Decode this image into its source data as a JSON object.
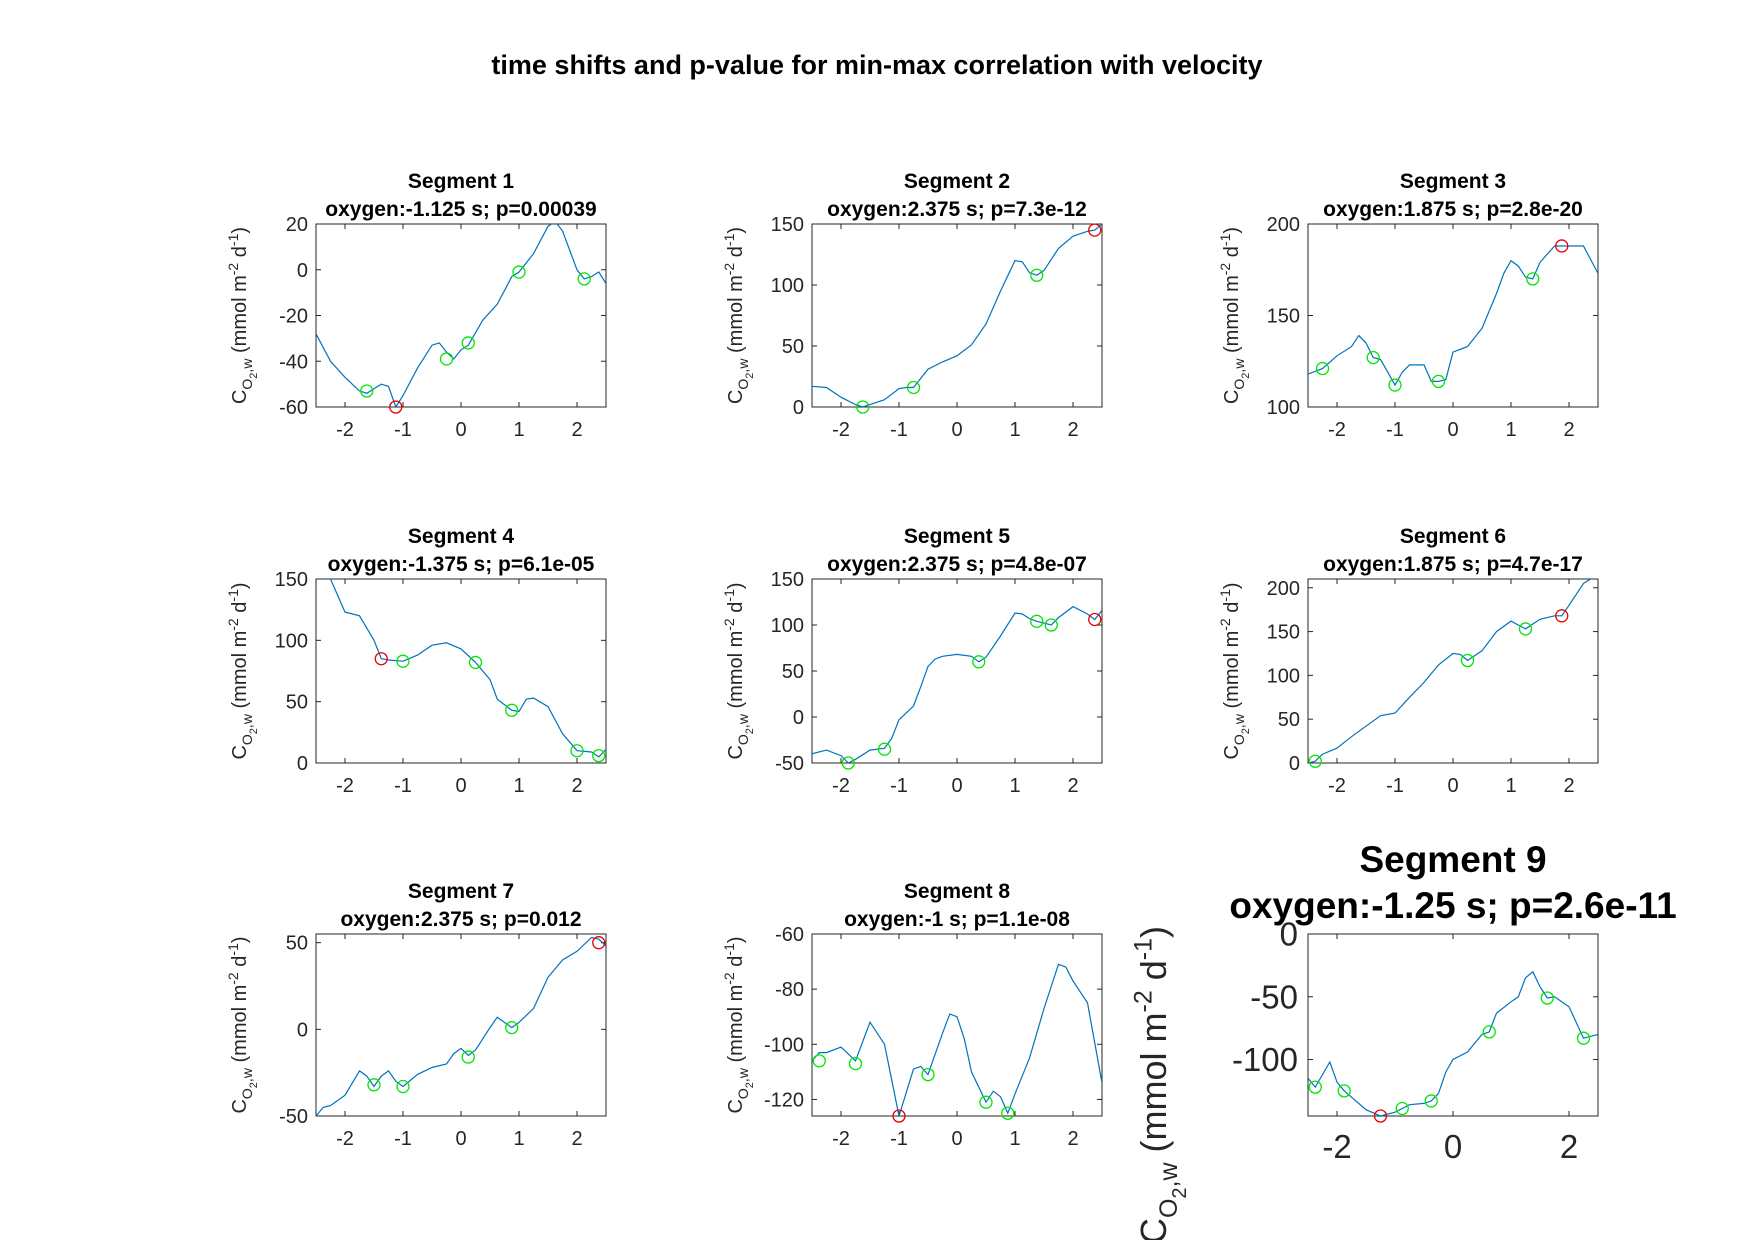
{
  "figure_title": "time shifts and p-value for min-max correlation with velocity",
  "colors": {
    "line": "#0072BD",
    "highlight": "#00E600",
    "selected": "#E60000",
    "axis": "#262626"
  },
  "chart_data": [
    {
      "type": "line",
      "title": "Segment 1",
      "subtitle": "oxygen:-1.125 s; p=0.00039",
      "ylabel": "C_{O_2,w} (mmol m^{-2} d^{-1})",
      "xlim": [
        -2.5,
        2.5
      ],
      "ylim": [
        -60,
        20
      ],
      "xticks": [
        -2,
        -1,
        0,
        1,
        2
      ],
      "yticks": [
        -60,
        -40,
        -20,
        0,
        20
      ],
      "series": [
        {
          "x": [
            -2.5,
            -2.25,
            -2.0,
            -1.75,
            -1.625,
            -1.5,
            -1.375,
            -1.25,
            -1.125,
            -1.0,
            -0.75,
            -0.5,
            -0.375,
            -0.25,
            -0.125,
            0.0,
            0.125,
            0.375,
            0.625,
            0.875,
            1.0,
            1.25,
            1.5,
            1.625,
            1.75,
            2.0,
            2.125,
            2.25,
            2.375,
            2.5
          ],
          "y": [
            -28,
            -40,
            -47,
            -53,
            -54,
            -52,
            -50,
            -51,
            -60,
            -55,
            -43,
            -33,
            -32,
            -36,
            -39,
            -35,
            -33,
            -22,
            -15,
            -3,
            -1,
            7,
            19,
            21,
            17,
            0,
            -4,
            -3,
            -1,
            -6
          ]
        }
      ],
      "markers_green": [
        [
          -1.625,
          -53
        ],
        [
          -0.25,
          -39
        ],
        [
          0.125,
          -32
        ],
        [
          1.0,
          -1
        ],
        [
          2.125,
          -4
        ]
      ],
      "marker_red": [
        -1.125,
        -60
      ]
    },
    {
      "type": "line",
      "title": "Segment 2",
      "subtitle": "oxygen:2.375 s; p=7.3e-12",
      "ylabel": "C_{O_2,w} (mmol m^{-2} d^{-1})",
      "xlim": [
        -2.5,
        2.5
      ],
      "ylim": [
        0,
        150
      ],
      "xticks": [
        -2,
        -1,
        0,
        1,
        2
      ],
      "yticks": [
        0,
        50,
        100,
        150
      ],
      "series": [
        {
          "x": [
            -2.5,
            -2.25,
            -2.0,
            -1.75,
            -1.625,
            -1.5,
            -1.25,
            -1.0,
            -0.875,
            -0.75,
            -0.5,
            -0.25,
            0.0,
            0.25,
            0.5,
            0.75,
            1.0,
            1.125,
            1.25,
            1.375,
            1.5,
            1.75,
            2.0,
            2.25,
            2.375,
            2.5
          ],
          "y": [
            17,
            16,
            8,
            2,
            0,
            2,
            6,
            15,
            16,
            16,
            31,
            37,
            42,
            51,
            68,
            95,
            120,
            119,
            110,
            108,
            112,
            130,
            140,
            144,
            145,
            150
          ]
        }
      ],
      "markers_green": [
        [
          -1.625,
          0
        ],
        [
          -0.75,
          16
        ],
        [
          1.375,
          108
        ]
      ],
      "marker_red": [
        2.375,
        145
      ]
    },
    {
      "type": "line",
      "title": "Segment 3",
      "subtitle": "oxygen:1.875 s; p=2.8e-20",
      "ylabel": "C_{O_2,w} (mmol m^{-2} d^{-1})",
      "xlim": [
        -2.5,
        2.5
      ],
      "ylim": [
        100,
        200
      ],
      "xticks": [
        -2,
        -1,
        0,
        1,
        2
      ],
      "yticks": [
        100,
        150,
        200
      ],
      "series": [
        {
          "x": [
            -2.5,
            -2.25,
            -2.0,
            -1.75,
            -1.625,
            -1.5,
            -1.375,
            -1.25,
            -1.0,
            -0.875,
            -0.75,
            -0.5,
            -0.375,
            -0.25,
            -0.125,
            0.0,
            0.25,
            0.5,
            0.75,
            0.875,
            1.0,
            1.125,
            1.25,
            1.375,
            1.5,
            1.75,
            1.875,
            2.0,
            2.25,
            2.5
          ],
          "y": [
            118,
            121,
            128,
            133,
            139,
            135,
            127,
            126,
            112,
            119,
            123,
            123,
            114,
            114,
            115,
            130,
            133,
            143,
            162,
            173,
            180,
            177,
            171,
            170,
            179,
            188,
            188,
            188,
            188,
            173
          ]
        }
      ],
      "markers_green": [
        [
          -2.25,
          121
        ],
        [
          -1.375,
          127
        ],
        [
          -1.0,
          112
        ],
        [
          -0.25,
          114
        ],
        [
          1.375,
          170
        ]
      ],
      "marker_red": [
        1.875,
        188
      ]
    },
    {
      "type": "line",
      "title": "Segment 4",
      "subtitle": "oxygen:-1.375 s; p=6.1e-05",
      "ylabel": "C_{O_2,w} (mmol m^{-2} d^{-1})",
      "xlim": [
        -2.5,
        2.5
      ],
      "ylim": [
        0,
        150
      ],
      "xticks": [
        -2,
        -1,
        0,
        1,
        2
      ],
      "yticks": [
        0,
        50,
        100,
        150
      ],
      "series": [
        {
          "x": [
            -2.5,
            -2.25,
            -2.0,
            -1.75,
            -1.5,
            -1.375,
            -1.25,
            -1.0,
            -0.75,
            -0.5,
            -0.25,
            0.0,
            0.25,
            0.5,
            0.625,
            0.875,
            1.0,
            1.125,
            1.25,
            1.5,
            1.75,
            2.0,
            2.25,
            2.375,
            2.5
          ],
          "y": [
            155,
            150,
            123,
            120,
            100,
            85,
            84,
            83,
            88,
            96,
            98,
            93,
            82,
            68,
            52,
            43,
            42,
            52,
            53,
            46,
            24,
            10,
            9,
            5,
            11
          ]
        }
      ],
      "markers_green": [
        [
          -1.0,
          83
        ],
        [
          0.25,
          82
        ],
        [
          0.875,
          43
        ],
        [
          2.0,
          10
        ],
        [
          2.375,
          6
        ]
      ],
      "marker_red": [
        -1.375,
        85
      ]
    },
    {
      "type": "line",
      "title": "Segment 5",
      "subtitle": "oxygen:2.375 s; p=4.8e-07",
      "ylabel": "C_{O_2,w} (mmol m^{-2} d^{-1})",
      "xlim": [
        -2.5,
        2.5
      ],
      "ylim": [
        -50,
        150
      ],
      "xticks": [
        -2,
        -1,
        0,
        1,
        2
      ],
      "yticks": [
        -50,
        0,
        50,
        100,
        150
      ],
      "series": [
        {
          "x": [
            -2.5,
            -2.25,
            -2.0,
            -1.875,
            -1.75,
            -1.5,
            -1.25,
            -1.125,
            -1.0,
            -0.75,
            -0.625,
            -0.5,
            -0.375,
            -0.25,
            0.0,
            0.25,
            0.375,
            0.5,
            0.75,
            1.0,
            1.125,
            1.25,
            1.375,
            1.625,
            1.75,
            2.0,
            2.25,
            2.375,
            2.5
          ],
          "y": [
            -40,
            -36,
            -42,
            -50,
            -46,
            -36,
            -34,
            -23,
            -3,
            12,
            33,
            55,
            63,
            66,
            68,
            66,
            60,
            65,
            88,
            113,
            112,
            107,
            104,
            100,
            108,
            120,
            112,
            106,
            116
          ]
        }
      ],
      "markers_green": [
        [
          -1.875,
          -50
        ],
        [
          -1.25,
          -35
        ],
        [
          0.375,
          60
        ],
        [
          1.375,
          104
        ],
        [
          1.625,
          100
        ]
      ],
      "marker_red": [
        2.375,
        106
      ]
    },
    {
      "type": "line",
      "title": "Segment 6",
      "subtitle": "oxygen:1.875 s; p=4.7e-17",
      "ylabel": "C_{O_2,w} (mmol m^{-2} d^{-1})",
      "xlim": [
        -2.5,
        2.5
      ],
      "ylim": [
        0,
        210
      ],
      "xticks": [
        -2,
        -1,
        0,
        1,
        2
      ],
      "yticks": [
        0,
        50,
        100,
        150,
        200
      ],
      "series": [
        {
          "x": [
            -2.5,
            -2.375,
            -2.25,
            -2.0,
            -1.75,
            -1.5,
            -1.25,
            -1.0,
            -0.75,
            -0.5,
            -0.25,
            0.0,
            0.125,
            0.25,
            0.5,
            0.75,
            1.0,
            1.25,
            1.5,
            1.75,
            1.875,
            2.0,
            2.25,
            2.5
          ],
          "y": [
            0,
            2,
            10,
            17,
            30,
            42,
            54,
            57,
            75,
            92,
            112,
            125,
            124,
            117,
            128,
            150,
            162,
            153,
            164,
            168,
            168,
            180,
            205,
            215
          ]
        }
      ],
      "markers_green": [
        [
          -2.375,
          2
        ],
        [
          0.25,
          117
        ],
        [
          1.25,
          153
        ]
      ],
      "marker_red": [
        1.875,
        168
      ]
    },
    {
      "type": "line",
      "title": "Segment 7",
      "subtitle": "oxygen:2.375 s; p=0.012",
      "ylabel": "C_{O_2,w} (mmol m^{-2} d^{-1})",
      "xlim": [
        -2.5,
        2.5
      ],
      "ylim": [
        -50,
        55
      ],
      "xticks": [
        -2,
        -1,
        0,
        1,
        2
      ],
      "yticks": [
        -50,
        0,
        50
      ],
      "series": [
        {
          "x": [
            -2.5,
            -2.375,
            -2.25,
            -2.0,
            -1.75,
            -1.625,
            -1.5,
            -1.375,
            -1.25,
            -1.125,
            -1.0,
            -0.75,
            -0.5,
            -0.25,
            -0.125,
            0.0,
            0.125,
            0.25,
            0.5,
            0.625,
            0.875,
            1.0,
            1.25,
            1.5,
            1.75,
            2.0,
            2.25,
            2.375,
            2.5
          ],
          "y": [
            -50,
            -45,
            -44,
            -38,
            -24,
            -27,
            -33,
            -27,
            -24,
            -30,
            -33,
            -26,
            -22,
            -20,
            -14,
            -11,
            -15,
            -12,
            1,
            7,
            1,
            4,
            12,
            30,
            40,
            45,
            53,
            52,
            48
          ]
        }
      ],
      "markers_green": [
        [
          -1.5,
          -32
        ],
        [
          -1.0,
          -33
        ],
        [
          0.125,
          -16
        ],
        [
          0.875,
          1
        ]
      ],
      "marker_red": [
        2.375,
        50
      ]
    },
    {
      "type": "line",
      "title": "Segment 8",
      "subtitle": "oxygen:-1 s; p=1.1e-08",
      "ylabel": "C_{O_2,w} (mmol m^{-2} d^{-1})",
      "xlim": [
        -2.5,
        2.5
      ],
      "ylim": [
        -126,
        -60
      ],
      "xticks": [
        -2,
        -1,
        0,
        1,
        2
      ],
      "yticks": [
        -120,
        -100,
        -80,
        -60
      ],
      "series": [
        {
          "x": [
            -2.5,
            -2.375,
            -2.25,
            -2.0,
            -1.75,
            -1.5,
            -1.25,
            -1.0,
            -0.75,
            -0.625,
            -0.5,
            -0.25,
            -0.125,
            0.0,
            0.125,
            0.25,
            0.5,
            0.625,
            0.75,
            0.875,
            1.0,
            1.25,
            1.5,
            1.75,
            1.875,
            2.0,
            2.25,
            2.5
          ],
          "y": [
            -106,
            -103,
            -103,
            -101,
            -106,
            -92,
            -100,
            -126,
            -109,
            -108,
            -111,
            -96,
            -89,
            -90,
            -98,
            -110,
            -121,
            -117,
            -119,
            -125,
            -118,
            -105,
            -87,
            -71,
            -72,
            -77,
            -85,
            -114
          ]
        }
      ],
      "markers_green": [
        [
          -2.375,
          -106
        ],
        [
          -1.75,
          -107
        ],
        [
          -0.5,
          -111
        ],
        [
          0.5,
          -121
        ],
        [
          0.875,
          -125
        ]
      ],
      "marker_red": [
        -1.0,
        -126
      ]
    },
    {
      "type": "line",
      "title": "Segment 9",
      "subtitle": "oxygen:-1.25 s; p=2.6e-11",
      "ylabel": "C_{O_2,w} (mmol m^{-2} d^{-1})",
      "xlim": [
        -2.5,
        2.5
      ],
      "ylim": [
        -145,
        0
      ],
      "xticks": [
        -2,
        0,
        2
      ],
      "yticks": [
        -100,
        -50,
        0
      ],
      "series": [
        {
          "x": [
            -2.5,
            -2.375,
            -2.125,
            -2.0,
            -1.875,
            -1.75,
            -1.5,
            -1.25,
            -1.0,
            -0.875,
            -0.75,
            -0.5,
            -0.375,
            -0.25,
            -0.125,
            0.0,
            0.25,
            0.5,
            0.625,
            0.75,
            1.0,
            1.125,
            1.25,
            1.375,
            1.5,
            1.625,
            1.75,
            2.0,
            2.25,
            2.5
          ],
          "y": [
            -115,
            -122,
            -102,
            -118,
            -125,
            -130,
            -140,
            -145,
            -142,
            -139,
            -136,
            -135,
            -133,
            -127,
            -110,
            -100,
            -94,
            -80,
            -78,
            -63,
            -54,
            -50,
            -35,
            -30,
            -42,
            -51,
            -50,
            -58,
            -83,
            -80
          ]
        }
      ],
      "markers_green": [
        [
          -2.375,
          -122
        ],
        [
          -1.875,
          -125
        ],
        [
          -0.875,
          -139
        ],
        [
          -0.375,
          -133
        ],
        [
          0.625,
          -78
        ],
        [
          1.625,
          -51
        ],
        [
          2.25,
          -83
        ]
      ],
      "marker_red": [
        -1.25,
        -145
      ]
    }
  ]
}
